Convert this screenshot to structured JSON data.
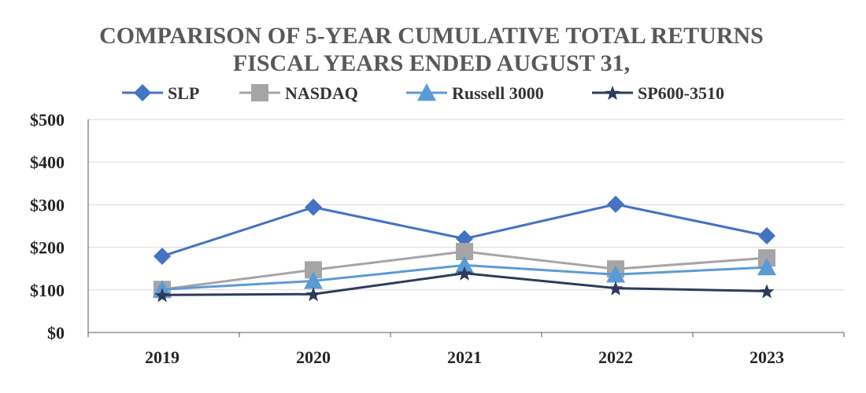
{
  "chart_data": {
    "type": "line",
    "title": "COMPARISON OF 5-YEAR CUMULATIVE TOTAL RETURNS",
    "subtitle": "FISCAL YEARS ENDED AUGUST 31,",
    "xlabel": "",
    "ylabel": "",
    "categories": [
      "2019",
      "2020",
      "2021",
      "2022",
      "2023"
    ],
    "ylim": [
      0,
      500
    ],
    "yticks": [
      0,
      100,
      200,
      300,
      400,
      500
    ],
    "ytick_labels": [
      "$0",
      "$100",
      "$200",
      "$300",
      "$400",
      "$500"
    ],
    "grid": true,
    "legend_position": "top",
    "series": [
      {
        "name": "SLP",
        "values": [
          179,
          294,
          220,
          301,
          227
        ],
        "color": "#4472c4",
        "marker": "diamond"
      },
      {
        "name": "NASDAQ",
        "values": [
          101,
          147,
          190,
          149,
          175
        ],
        "color": "#a5a5a5",
        "marker": "square"
      },
      {
        "name": "Russell 3000",
        "values": [
          101,
          121,
          158,
          136,
          153
        ],
        "color": "#5b9bd5",
        "marker": "triangle"
      },
      {
        "name": "SP600-3510",
        "values": [
          88,
          90,
          139,
          104,
          97
        ],
        "color": "#2e3c5a",
        "marker": "star"
      }
    ]
  }
}
